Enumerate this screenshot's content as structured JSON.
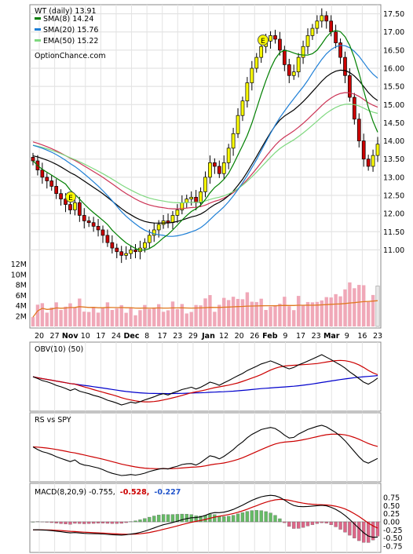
{
  "main_panel": {
    "title": "WT (daily) 13.91",
    "legend": [
      {
        "label": "SMA(8) 14.24",
        "color": "#007f00"
      },
      {
        "label": "SMA(20) 15.76",
        "color": "#1e7fd6"
      },
      {
        "label": "EMA(50) 15.22",
        "color": "#7fd87f"
      }
    ],
    "watermark": "OptionChance.com",
    "earnings_marker": "E"
  },
  "obv_panel": {
    "label": "OBV(10) (50)"
  },
  "rs_panel": {
    "label": "RS vs SPY"
  },
  "macd_panel": {
    "label_prefix": "MACD(8,20,9) -0.755,",
    "signal_value": "-0.528,",
    "hist_value": "-0.227"
  },
  "colors": {
    "up_candle": "#ffff00",
    "down_candle": "#cc0000",
    "neutral_candle": "#ffffff",
    "sma8": "#007f00",
    "sma20": "#1e7fd6",
    "ema50": "#7fd87f",
    "sma50_black": "#000000",
    "sma200_red": "#cc3355",
    "volume_bar": "#f0a8b8",
    "volume_ma": "#e07820",
    "obv_line": "#000000",
    "obv_ma10": "#cc0000",
    "obv_ma50": "#0000cc",
    "macd_line": "#000000",
    "signal_line": "#cc0000",
    "hist_pos": "#66bb66",
    "hist_neg": "#dd6688"
  },
  "chart_data": [
    {
      "type": "candlestick",
      "x_labels": [
        "20",
        "27",
        "Nov",
        "10",
        "17",
        "24",
        "Dec",
        "8",
        "17",
        "23",
        "29",
        "Jan",
        "12",
        "20",
        "26",
        "Feb",
        "9",
        "17",
        "23",
        "Mar",
        "9",
        "16",
        "23"
      ],
      "y_ticks": [
        "17.50",
        "17.00",
        "16.50",
        "16.00",
        "15.50",
        "15.00",
        "14.50",
        "14.00",
        "13.50",
        "13.00",
        "12.50",
        "12.00",
        "11.50",
        "11.00"
      ],
      "ylim": [
        10.75,
        17.75
      ],
      "close_path": [
        13.45,
        13.2,
        13.0,
        12.9,
        12.75,
        12.55,
        12.4,
        12.25,
        12.1,
        12.3,
        11.95,
        11.8,
        11.75,
        11.65,
        11.55,
        11.4,
        11.2,
        11.05,
        10.95,
        10.85,
        10.9,
        11.0,
        10.95,
        11.05,
        11.2,
        11.4,
        11.55,
        11.7,
        11.8,
        11.75,
        11.95,
        12.1,
        12.3,
        12.4,
        12.45,
        12.3,
        12.6,
        13.0,
        13.4,
        13.3,
        13.1,
        13.4,
        13.8,
        14.2,
        14.7,
        15.1,
        15.6,
        16.0,
        16.3,
        16.6,
        16.75,
        16.9,
        16.8,
        16.5,
        16.1,
        15.8,
        15.9,
        16.3,
        16.6,
        16.9,
        17.1,
        17.3,
        17.45,
        17.3,
        17.0,
        16.7,
        16.3,
        15.8,
        15.2,
        14.6,
        14.0,
        13.5,
        13.3,
        13.6,
        13.91
      ],
      "sma8_last": 14.24,
      "sma20_last": 15.76,
      "ema50_last": 15.22
    },
    {
      "type": "bar",
      "name": "volume",
      "y_ticks": [
        "12M",
        "10M",
        "8M",
        "6M",
        "4M",
        "2M"
      ],
      "ylim": [
        0,
        13000000
      ]
    },
    {
      "type": "line",
      "name": "OBV(10) (50)"
    },
    {
      "type": "line",
      "name": "RS vs SPY"
    },
    {
      "type": "line",
      "name": "MACD(8,20,9)",
      "y_ticks": [
        "0.75",
        "0.50",
        "0.25",
        "0.00",
        "-0.25",
        "-0.50",
        "-0.75"
      ],
      "ylim": [
        -0.85,
        0.85
      ],
      "macd_last": -0.755,
      "signal_last": -0.528,
      "hist_last": -0.227
    }
  ]
}
